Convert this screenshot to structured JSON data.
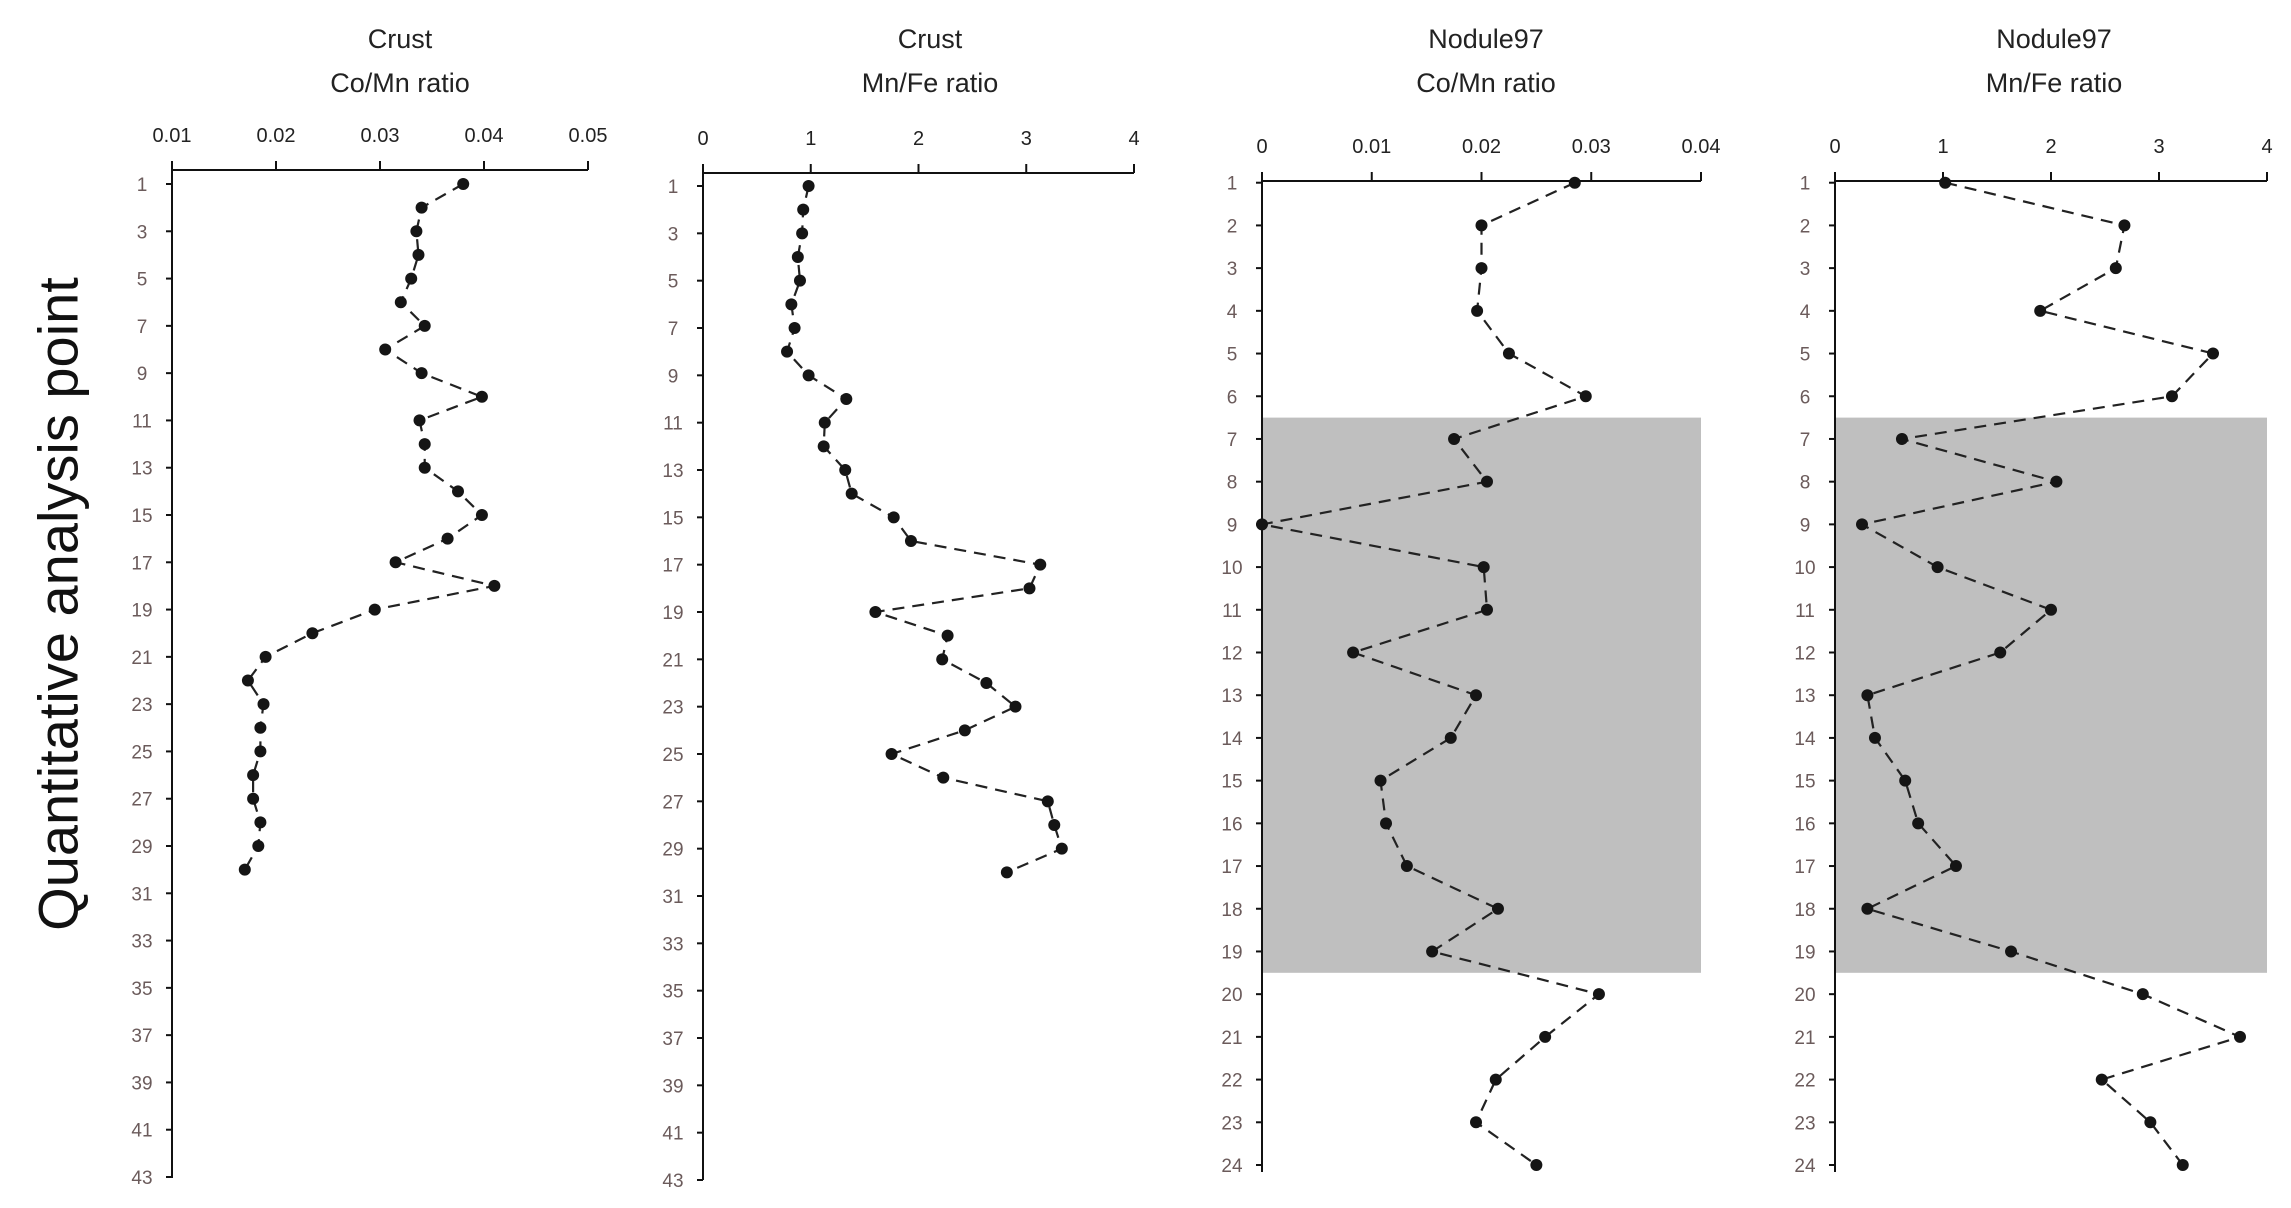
{
  "y_axis_title": "Quantitative analysis point",
  "chart_data": [
    {
      "type": "line",
      "title_line1": "Crust",
      "title_line2": "Co/Mn ratio",
      "xlim": [
        0.01,
        0.05
      ],
      "x_ticks": [
        "0.01",
        "0.02",
        "0.03",
        "0.04",
        "0.05"
      ],
      "ylim": [
        1,
        43
      ],
      "y_ticks": [
        1,
        3,
        5,
        7,
        9,
        11,
        13,
        15,
        17,
        19,
        21,
        23,
        25,
        27,
        29,
        31,
        33,
        35,
        37,
        39,
        41,
        43
      ],
      "y": [
        1,
        2,
        3,
        4,
        5,
        6,
        7,
        8,
        9,
        10,
        11,
        12,
        13,
        14,
        15,
        16,
        17,
        18,
        19,
        20,
        21,
        22,
        23,
        24,
        25,
        26,
        27,
        28,
        29,
        30
      ],
      "values": [
        0.038,
        0.034,
        0.0335,
        0.0337,
        0.033,
        0.032,
        0.0343,
        0.0305,
        0.034,
        0.0398,
        0.0338,
        0.0343,
        0.0343,
        0.0375,
        0.0398,
        0.0365,
        0.0315,
        0.041,
        0.0295,
        0.0235,
        0.019,
        0.0173,
        0.0188,
        0.0185,
        0.0185,
        0.0178,
        0.0178,
        0.0185,
        0.0183,
        0.017
      ]
    },
    {
      "type": "line",
      "title_line1": "Crust",
      "title_line2": "Mn/Fe ratio",
      "xlim": [
        0,
        4
      ],
      "x_ticks": [
        "0",
        "1",
        "2",
        "3",
        "4"
      ],
      "ylim": [
        1,
        43
      ],
      "y_ticks": [
        1,
        3,
        5,
        7,
        9,
        11,
        13,
        15,
        17,
        19,
        21,
        23,
        25,
        27,
        29,
        31,
        33,
        35,
        37,
        39,
        41,
        43
      ],
      "y": [
        1,
        2,
        3,
        4,
        5,
        6,
        7,
        8,
        9,
        10,
        11,
        12,
        13,
        14,
        15,
        16,
        17,
        18,
        19,
        20,
        21,
        22,
        23,
        24,
        25,
        26,
        27,
        28,
        29,
        30
      ],
      "values": [
        0.98,
        0.93,
        0.92,
        0.88,
        0.9,
        0.82,
        0.85,
        0.78,
        0.98,
        1.33,
        1.13,
        1.12,
        1.32,
        1.38,
        1.77,
        1.93,
        3.13,
        3.03,
        1.6,
        2.27,
        2.22,
        2.63,
        2.9,
        2.43,
        1.75,
        2.23,
        3.2,
        3.26,
        3.33,
        2.82
      ]
    },
    {
      "type": "line",
      "title_line1": "Nodule97",
      "title_line2": "Co/Mn ratio",
      "xlim": [
        0,
        0.04
      ],
      "x_ticks": [
        "0",
        "0.01",
        "0.02",
        "0.03",
        "0.04"
      ],
      "ylim": [
        0,
        24
      ],
      "y_ticks": [
        1,
        2,
        3,
        4,
        5,
        6,
        7,
        8,
        9,
        10,
        11,
        12,
        13,
        14,
        15,
        16,
        17,
        18,
        19,
        20,
        21,
        22,
        23,
        24
      ],
      "shaded_range": [
        7,
        19
      ],
      "y": [
        1,
        2,
        3,
        4,
        5,
        6,
        7,
        8,
        9,
        10,
        11,
        12,
        13,
        14,
        15,
        16,
        17,
        18,
        19,
        20,
        21,
        22,
        23,
        24
      ],
      "values": [
        0.0285,
        0.02,
        0.02,
        0.0196,
        0.0225,
        0.0295,
        0.0175,
        0.0205,
        0.0,
        0.0202,
        0.0205,
        0.0083,
        0.0195,
        0.0172,
        0.0108,
        0.0113,
        0.0132,
        0.0215,
        0.0155,
        0.0307,
        0.0258,
        0.0213,
        0.0195,
        0.025
      ]
    },
    {
      "type": "line",
      "title_line1": "Nodule97",
      "title_line2": "Mn/Fe ratio",
      "xlim": [
        0,
        4
      ],
      "x_ticks": [
        "0",
        "1",
        "2",
        "3",
        "4"
      ],
      "ylim": [
        0,
        24
      ],
      "y_ticks": [
        1,
        2,
        3,
        4,
        5,
        6,
        7,
        8,
        9,
        10,
        11,
        12,
        13,
        14,
        15,
        16,
        17,
        18,
        19,
        20,
        21,
        22,
        23,
        24
      ],
      "shaded_range": [
        7,
        19
      ],
      "y": [
        1,
        2,
        3,
        4,
        5,
        6,
        7,
        8,
        9,
        10,
        11,
        12,
        13,
        14,
        15,
        16,
        17,
        18,
        19,
        20,
        21,
        22,
        23,
        24
      ],
      "values": [
        1.02,
        2.68,
        2.6,
        1.9,
        3.5,
        3.12,
        0.62,
        2.05,
        0.25,
        0.95,
        2.0,
        1.53,
        0.3,
        0.37,
        0.65,
        0.77,
        1.12,
        0.3,
        1.63,
        2.85,
        3.75,
        2.47,
        2.92,
        3.22
      ]
    }
  ]
}
